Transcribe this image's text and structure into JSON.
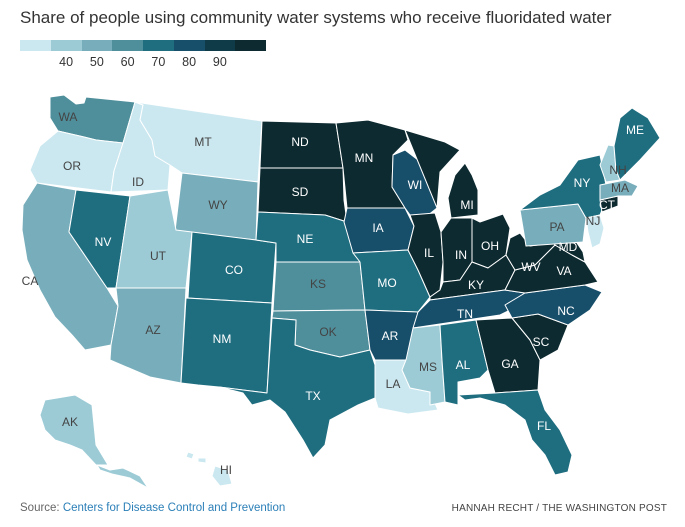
{
  "title": "Share of people using community water systems who receive fluoridated water",
  "legend": {
    "colors": [
      "#cbe8f0",
      "#9ccbd6",
      "#78aebb",
      "#4f8f9c",
      "#1f6e80",
      "#174e6a",
      "#0f3a47",
      "#0d2a30"
    ],
    "ticks": [
      "40",
      "50",
      "60",
      "70",
      "80",
      "90"
    ]
  },
  "source_label": "Source: ",
  "source_link": "Centers for Disease Control and Prevention",
  "credit": "HANNAH RECHT / THE WASHINGTON POST",
  "states": [
    {
      "label": "WA",
      "color": "#4f8f9c"
    },
    {
      "label": "OR",
      "color": "#cbe8f0"
    },
    {
      "label": "CA",
      "color": "#78aebb"
    },
    {
      "label": "ID",
      "color": "#cbe8f0"
    },
    {
      "label": "MT",
      "color": "#cbe8f0"
    },
    {
      "label": "WY",
      "color": "#78aebb"
    },
    {
      "label": "NV",
      "color": "#1f6e80"
    },
    {
      "label": "UT",
      "color": "#9ccbd6"
    },
    {
      "label": "AZ",
      "color": "#78aebb"
    },
    {
      "label": "CO",
      "color": "#1f6e80"
    },
    {
      "label": "NM",
      "color": "#1f6e80"
    },
    {
      "label": "ND",
      "color": "#0d2a30"
    },
    {
      "label": "SD",
      "color": "#0d2a30"
    },
    {
      "label": "NE",
      "color": "#1f6e80"
    },
    {
      "label": "KS",
      "color": "#4f8f9c"
    },
    {
      "label": "OK",
      "color": "#4f8f9c"
    },
    {
      "label": "TX",
      "color": "#1f6e80"
    },
    {
      "label": "MN",
      "color": "#0d2a30"
    },
    {
      "label": "IA",
      "color": "#174e6a"
    },
    {
      "label": "MO",
      "color": "#1f6e80"
    },
    {
      "label": "AR",
      "color": "#174e6a"
    },
    {
      "label": "LA",
      "color": "#cbe8f0"
    },
    {
      "label": "WI",
      "color": "#174e6a"
    },
    {
      "label": "IL",
      "color": "#0d2a30"
    },
    {
      "label": "MI",
      "color": "#0d2a30"
    },
    {
      "label": "IN",
      "color": "#0d2a30"
    },
    {
      "label": "OH",
      "color": "#0d2a30"
    },
    {
      "label": "KY",
      "color": "#0d2a30"
    },
    {
      "label": "TN",
      "color": "#174e6a"
    },
    {
      "label": "MS",
      "color": "#9ccbd6"
    },
    {
      "label": "AL",
      "color": "#1f6e80"
    },
    {
      "label": "GA",
      "color": "#0d2a30"
    },
    {
      "label": "FL",
      "color": "#1f6e80"
    },
    {
      "label": "SC",
      "color": "#0d2a30"
    },
    {
      "label": "NC",
      "color": "#174e6a"
    },
    {
      "label": "VA",
      "color": "#0d2a30"
    },
    {
      "label": "WV",
      "color": "#0d2a30"
    },
    {
      "label": "MD",
      "color": "#0d2a30"
    },
    {
      "label": "PA",
      "color": "#78aebb"
    },
    {
      "label": "NY",
      "color": "#1f6e80"
    },
    {
      "label": "NJ",
      "color": "#cbe8f0"
    },
    {
      "label": "CT",
      "color": "#0d2a30"
    },
    {
      "label": "MA",
      "color": "#78aebb"
    },
    {
      "label": "NH",
      "color": "#9ccbd6"
    },
    {
      "label": "ME",
      "color": "#1f6e80"
    },
    {
      "label": "AK",
      "color": "#9ccbd6"
    },
    {
      "label": "HI",
      "color": "#cbe8f0"
    }
  ]
}
